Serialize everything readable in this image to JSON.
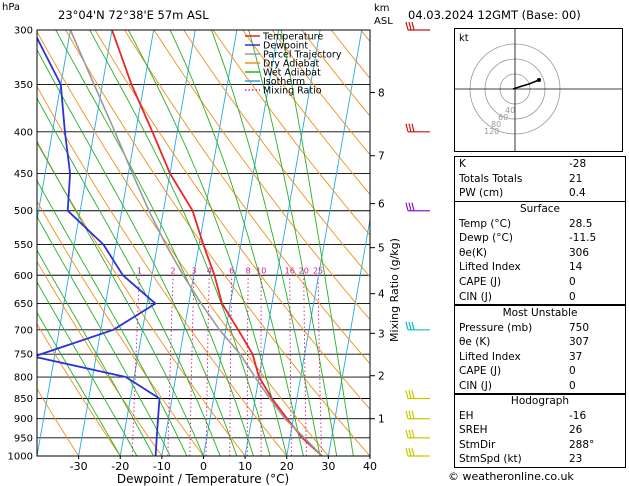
{
  "header": {
    "location": "23°04'N  72°38'E  57m  ASL",
    "datetime": "04.03.2024  12GMT  (Base: 00)",
    "hpa_label": "hPa",
    "km_label": "km",
    "asl_label": "ASL"
  },
  "chart_data": {
    "type": "line",
    "xlabel": "Dewpoint / Temperature (°C)",
    "ylabel": "",
    "right_axis_label": "Mixing Ratio (g/kg)",
    "xlim": [
      -40,
      40
    ],
    "ylim": [
      1000,
      300
    ],
    "x_ticks": [
      -30,
      -20,
      -10,
      0,
      10,
      20,
      30,
      40
    ],
    "pressure_levels": [
      300,
      350,
      400,
      450,
      500,
      550,
      600,
      650,
      700,
      750,
      800,
      850,
      900,
      950,
      1000
    ],
    "km_ticks": [
      {
        "label": "8",
        "p": 358
      },
      {
        "label": "7",
        "p": 428
      },
      {
        "label": "6",
        "p": 490
      },
      {
        "label": "5",
        "p": 555
      },
      {
        "label": "4",
        "p": 632
      },
      {
        "label": "3",
        "p": 707
      },
      {
        "label": "2",
        "p": 797
      },
      {
        "label": "1",
        "p": 900
      }
    ],
    "mixing_ratio_labels": [
      "1",
      "2",
      "3",
      "4",
      "6",
      "8",
      "10",
      "16",
      "20",
      "25"
    ],
    "mixing_ratio_values": [
      1,
      2,
      3,
      4,
      6,
      8,
      10,
      16,
      20,
      25
    ],
    "skew": 75,
    "legend": {
      "position": "top-right",
      "items": [
        {
          "name": "Temperature",
          "color": "#e8262c",
          "style": "solid"
        },
        {
          "name": "Dewpoint",
          "color": "#2a33d8",
          "style": "solid"
        },
        {
          "name": "Parcel Trajectory",
          "color": "#9a9a9a",
          "style": "solid"
        },
        {
          "name": "Dry Adiabat",
          "color": "#f0901c",
          "style": "solid"
        },
        {
          "name": "Wet Adiabat",
          "color": "#26b026",
          "style": "solid"
        },
        {
          "name": "Isotherm",
          "color": "#26a9e0",
          "style": "solid"
        },
        {
          "name": "Mixing Ratio",
          "color": "#d6178c",
          "style": "dotted"
        }
      ]
    },
    "series": [
      {
        "name": "Temperature",
        "color": "#e8262c",
        "points": [
          [
            1000,
            28.5
          ],
          [
            950,
            23
          ],
          [
            900,
            18.5
          ],
          [
            850,
            14
          ],
          [
            800,
            10
          ],
          [
            750,
            7.5
          ],
          [
            700,
            3
          ],
          [
            650,
            -2
          ],
          [
            600,
            -5
          ],
          [
            550,
            -9
          ],
          [
            500,
            -13
          ],
          [
            450,
            -20
          ],
          [
            400,
            -26
          ],
          [
            350,
            -33
          ],
          [
            300,
            -40
          ]
        ]
      },
      {
        "name": "Dewpoint",
        "color": "#2a33d8",
        "points": [
          [
            1000,
            -11.5
          ],
          [
            950,
            -12
          ],
          [
            900,
            -12.5
          ],
          [
            850,
            -13
          ],
          [
            800,
            -22
          ],
          [
            755,
            -45
          ],
          [
            700,
            -27
          ],
          [
            650,
            -18
          ],
          [
            600,
            -27
          ],
          [
            550,
            -33
          ],
          [
            500,
            -43
          ],
          [
            450,
            -44
          ],
          [
            400,
            -47
          ],
          [
            350,
            -50
          ],
          [
            300,
            -59
          ]
        ]
      },
      {
        "name": "Parcel Trajectory",
        "color": "#9a9a9a",
        "points": [
          [
            1000,
            28.5
          ],
          [
            950,
            23.5
          ],
          [
            900,
            18
          ],
          [
            850,
            13.5
          ],
          [
            800,
            9
          ],
          [
            750,
            4.5
          ],
          [
            700,
            -1.5
          ],
          [
            650,
            -7
          ],
          [
            600,
            -12.5
          ],
          [
            550,
            -18
          ],
          [
            500,
            -23.5
          ],
          [
            450,
            -29
          ],
          [
            400,
            -35
          ],
          [
            350,
            -42
          ],
          [
            300,
            -50
          ]
        ]
      }
    ],
    "wind_barbs": [
      {
        "p": 300,
        "color": "#d01010"
      },
      {
        "p": 400,
        "color": "#d01010"
      },
      {
        "p": 500,
        "color": "#8a1ad0"
      },
      {
        "p": 700,
        "color": "#10c0c0"
      },
      {
        "p": 850,
        "color": "#c8c800"
      },
      {
        "p": 900,
        "color": "#c8c800"
      },
      {
        "p": 950,
        "color": "#c8c800"
      },
      {
        "p": 1000,
        "color": "#c8c800"
      }
    ]
  },
  "hodograph": {
    "title": "kt",
    "ring_labels": [
      "40",
      "60",
      "80",
      "120"
    ]
  },
  "indices": [
    {
      "label": "K",
      "value": "-28"
    },
    {
      "label": "Totals Totals",
      "value": "21"
    },
    {
      "label": "PW (cm)",
      "value": "0.4"
    }
  ],
  "surface": {
    "title": "Surface",
    "rows": [
      {
        "label": "Temp (°C)",
        "value": "28.5"
      },
      {
        "label": "Dewp (°C)",
        "value": "-11.5"
      },
      {
        "label": "θe(K)",
        "value": "306"
      },
      {
        "label": "Lifted Index",
        "value": "14"
      },
      {
        "label": "CAPE (J)",
        "value": "0"
      },
      {
        "label": "CIN (J)",
        "value": "0"
      }
    ]
  },
  "most_unstable": {
    "title": "Most Unstable",
    "rows": [
      {
        "label": "Pressure (mb)",
        "value": "750"
      },
      {
        "label": "θe (K)",
        "value": "307"
      },
      {
        "label": "Lifted Index",
        "value": "37"
      },
      {
        "label": "CAPE (J)",
        "value": "0"
      },
      {
        "label": "CIN (J)",
        "value": "0"
      }
    ]
  },
  "hodograph_table": {
    "title": "Hodograph",
    "rows": [
      {
        "label": "EH",
        "value": "-16"
      },
      {
        "label": "SREH",
        "value": "26"
      },
      {
        "label": "StmDir",
        "value": "288°"
      },
      {
        "label": "StmSpd (kt)",
        "value": "23"
      }
    ]
  },
  "footer": "© weatheronline.co.uk"
}
